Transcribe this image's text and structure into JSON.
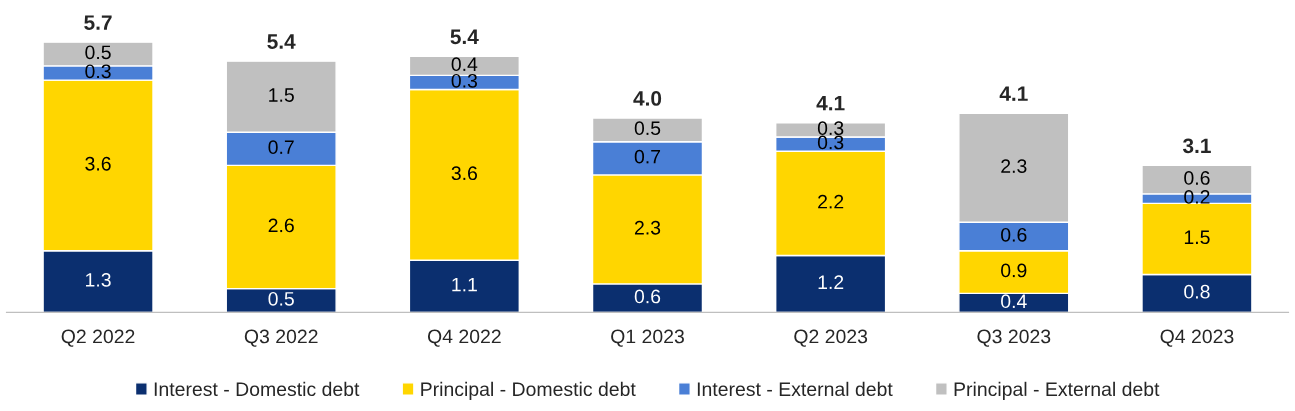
{
  "chart_data": {
    "type": "bar",
    "stacked": true,
    "data_labels": true,
    "legend": "bottom",
    "grid": false,
    "tick_labels": "x",
    "categories": [
      "Q2 2022",
      "Q3 2022",
      "Q4 2022",
      "Q1 2023",
      "Q2 2023",
      "Q3 2023",
      "Q4 2023"
    ],
    "series": [
      {
        "name": "Interest - Domestic debt",
        "color": "#0b2f6f",
        "values": [
          1.3,
          0.5,
          1.1,
          0.6,
          1.2,
          0.4,
          0.8
        ]
      },
      {
        "name": "Principal - Domestic debt",
        "color": "#ffd600",
        "values": [
          3.6,
          2.6,
          3.6,
          2.3,
          2.2,
          0.9,
          1.5
        ]
      },
      {
        "name": "Interest - External debt",
        "color": "#4a7fd6",
        "values": [
          0.3,
          0.7,
          0.3,
          0.7,
          0.3,
          0.6,
          0.2
        ]
      },
      {
        "name": "Principal - External debt",
        "color": "#c0c0c0",
        "values": [
          0.5,
          1.5,
          0.4,
          0.5,
          0.3,
          2.3,
          0.6
        ]
      }
    ],
    "totals": [
      "5.7",
      "5.4",
      "5.4",
      "4.0",
      "4.1",
      "4.1",
      "3.1"
    ]
  }
}
